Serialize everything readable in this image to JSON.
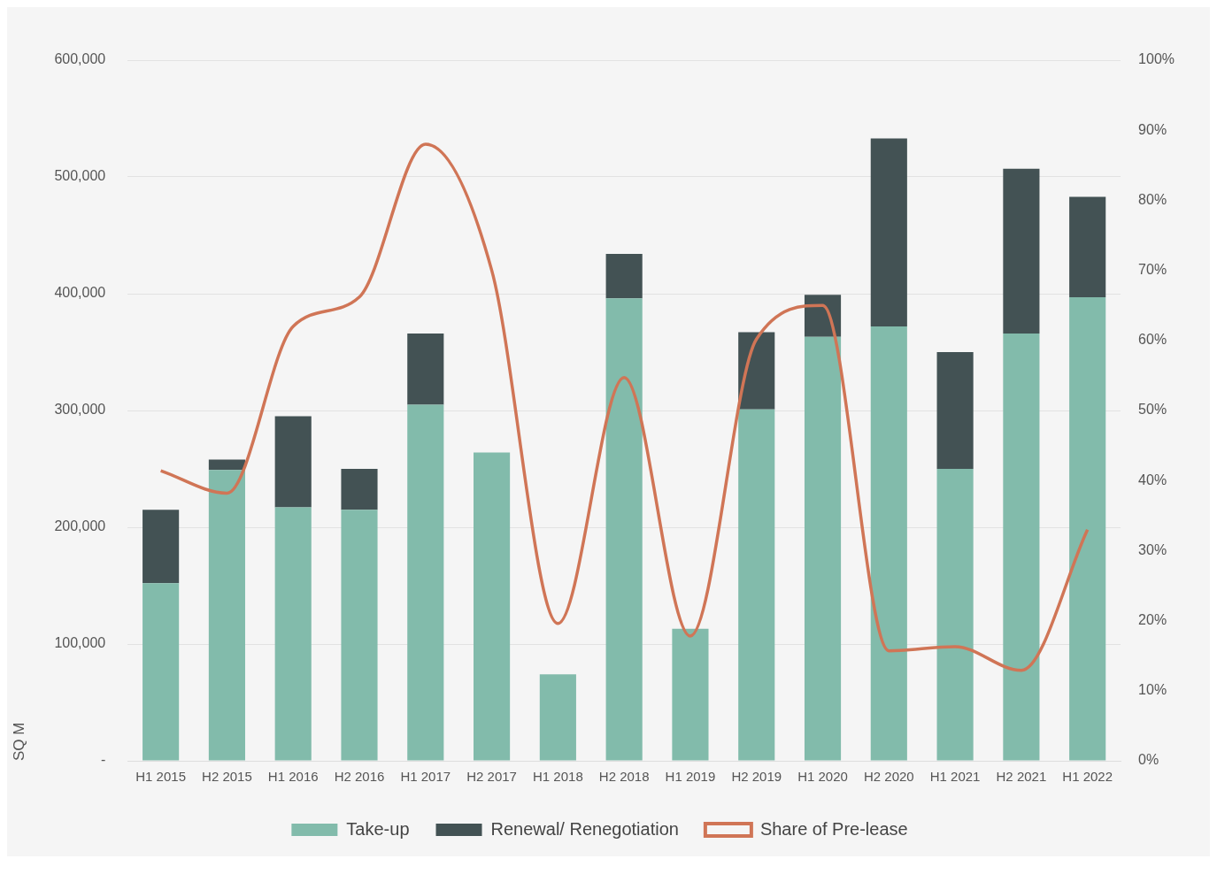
{
  "chart_data": {
    "type": "bar",
    "stacked": true,
    "ylabel": "SQ M",
    "categories": [
      "H1 2015",
      "H2 2015",
      "H1 2016",
      "H2 2016",
      "H1 2017",
      "H2 2017",
      "H1 2018",
      "H2 2018",
      "H1 2019",
      "H2 2019",
      "H1 2020",
      "H2 2020",
      "H1 2021",
      "H2 2021",
      "H1 2022"
    ],
    "series": [
      {
        "name": "Take-up",
        "color": "#82bbab",
        "values": [
          152000,
          249000,
          217000,
          215000,
          305000,
          264000,
          74000,
          396000,
          113000,
          301000,
          363000,
          372000,
          250000,
          366000,
          397000
        ]
      },
      {
        "name": "Renewal/ Renegotiation",
        "color": "#435254",
        "values": [
          63000,
          9000,
          78000,
          35000,
          61000,
          0,
          0,
          38000,
          0,
          66000,
          36000,
          161000,
          100000,
          141000,
          86000
        ]
      },
      {
        "name": "Share of Pre-lease",
        "type": "line",
        "axis": "y2",
        "color": "#d07556",
        "marker": "none",
        "values": [
          41.4,
          38.2,
          62,
          66.2,
          88,
          70,
          19.6,
          54.7,
          17.8,
          60.2,
          65,
          15.7,
          16.3,
          12.9,
          33
        ]
      }
    ],
    "ylim": [
      0,
      600000
    ],
    "yticks": [
      {
        "value": 0,
        "label": "-"
      },
      {
        "value": 100000,
        "label": "100,000"
      },
      {
        "value": 200000,
        "label": "200,000"
      },
      {
        "value": 300000,
        "label": "300,000"
      },
      {
        "value": 400000,
        "label": "400,000"
      },
      {
        "value": 500000,
        "label": "500,000"
      },
      {
        "value": 600000,
        "label": "600,000"
      }
    ],
    "y2lim": [
      0,
      100
    ],
    "y2ticks": [
      {
        "value": 0,
        "label": "0%"
      },
      {
        "value": 10,
        "label": "10%"
      },
      {
        "value": 20,
        "label": "20%"
      },
      {
        "value": 30,
        "label": "30%"
      },
      {
        "value": 40,
        "label": "40%"
      },
      {
        "value": 50,
        "label": "50%"
      },
      {
        "value": 60,
        "label": "60%"
      },
      {
        "value": 70,
        "label": "70%"
      },
      {
        "value": 80,
        "label": "80%"
      },
      {
        "value": 90,
        "label": "90%"
      },
      {
        "value": 100,
        "label": "100%"
      }
    ],
    "grid": "y",
    "legend": "bottom"
  }
}
